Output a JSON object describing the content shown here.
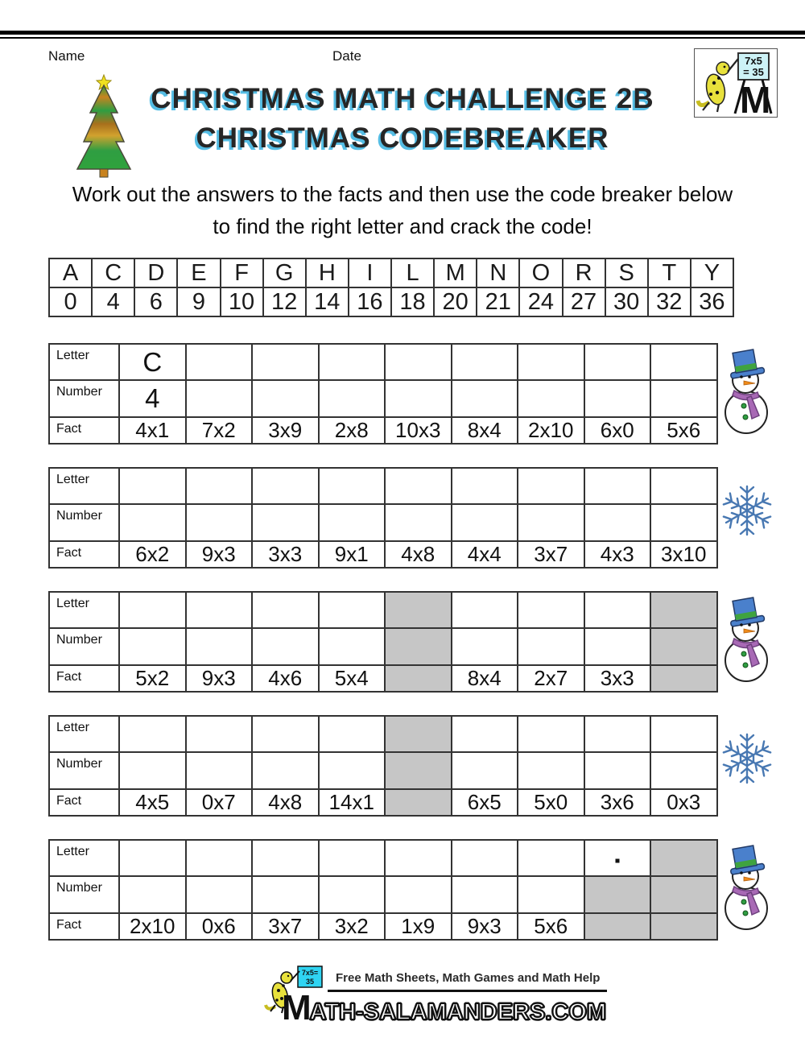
{
  "header": {
    "name_label": "Name",
    "date_label": "Date",
    "title_line1": "CHRISTMAS MATH CHALLENGE 2B",
    "title_line2": "CHRISTMAS CODEBREAKER",
    "logo_board_top": "7x5",
    "logo_board_bottom": "= 35",
    "logo_m": "M"
  },
  "instructions": {
    "line1": "Work out the answers to the facts and then use the code breaker below",
    "line2": "to find the right letter and crack the code!"
  },
  "codebreaker": {
    "letters": [
      "A",
      "C",
      "D",
      "E",
      "F",
      "G",
      "H",
      "I",
      "L",
      "M",
      "N",
      "O",
      "R",
      "S",
      "T",
      "Y"
    ],
    "numbers": [
      "0",
      "4",
      "6",
      "9",
      "10",
      "12",
      "14",
      "16",
      "18",
      "20",
      "21",
      "24",
      "27",
      "30",
      "32",
      "36"
    ]
  },
  "puzzle_row_labels": {
    "letter": "Letter",
    "number": "Number",
    "fact": "Fact"
  },
  "puzzles": [
    {
      "decoration": "snowman",
      "letters": [
        "C",
        "",
        "",
        "",
        "",
        "",
        "",
        "",
        ""
      ],
      "numbers": [
        "4",
        "",
        "",
        "",
        "",
        "",
        "",
        "",
        ""
      ],
      "facts": [
        "4x1",
        "7x2",
        "3x9",
        "2x8",
        "10x3",
        "8x4",
        "2x10",
        "6x0",
        "5x6"
      ],
      "shaded_letter": [],
      "shaded_number": [],
      "shaded_fact": []
    },
    {
      "decoration": "snowflake",
      "letters": [
        "",
        "",
        "",
        "",
        "",
        "",
        "",
        "",
        ""
      ],
      "numbers": [
        "",
        "",
        "",
        "",
        "",
        "",
        "",
        "",
        ""
      ],
      "facts": [
        "6x2",
        "9x3",
        "3x3",
        "9x1",
        "4x8",
        "4x4",
        "3x7",
        "4x3",
        "3x10"
      ],
      "shaded_letter": [],
      "shaded_number": [],
      "shaded_fact": []
    },
    {
      "decoration": "snowman",
      "letters": [
        "",
        "",
        "",
        "",
        "",
        "",
        "",
        "",
        ""
      ],
      "numbers": [
        "",
        "",
        "",
        "",
        "",
        "",
        "",
        "",
        ""
      ],
      "facts": [
        "5x2",
        "9x3",
        "4x6",
        "5x4",
        "",
        "8x4",
        "2x7",
        "3x3",
        ""
      ],
      "shaded_letter": [
        4,
        8
      ],
      "shaded_number": [
        4,
        8
      ],
      "shaded_fact": [
        4,
        8
      ]
    },
    {
      "decoration": "snowflake",
      "letters": [
        "",
        "",
        "",
        "",
        "",
        "",
        "",
        "",
        ""
      ],
      "numbers": [
        "",
        "",
        "",
        "",
        "",
        "",
        "",
        "",
        ""
      ],
      "facts": [
        "4x5",
        "0x7",
        "4x8",
        "14x1",
        "",
        "6x5",
        "5x0",
        "3x6",
        "0x3"
      ],
      "shaded_letter": [
        4
      ],
      "shaded_number": [
        4
      ],
      "shaded_fact": [
        4
      ]
    },
    {
      "decoration": "snowman",
      "letters": [
        "",
        "",
        "",
        "",
        "",
        "",
        "",
        ".",
        ""
      ],
      "numbers": [
        "",
        "",
        "",
        "",
        "",
        "",
        "",
        "",
        ""
      ],
      "facts": [
        "2x10",
        "0x6",
        "3x7",
        "3x2",
        "1x9",
        "9x3",
        "5x6",
        "",
        ""
      ],
      "shaded_letter": [
        8
      ],
      "shaded_number": [
        7,
        8
      ],
      "shaded_fact": [
        7,
        8
      ]
    }
  ],
  "footer": {
    "tagline": "Free Math Sheets, Math Games and Math Help",
    "brand_m": "M",
    "brand_rest": "ATH-SALAMANDERS.COM",
    "board_top": "7x5=",
    "board_bottom": "35"
  },
  "colors": {
    "title_text": "#262626",
    "title_shadow": "#55bde4",
    "shaded_cell": "#c6c6c6",
    "table_border": "#333333",
    "snowflake_blue": "#4878b2",
    "snowman_hat_blue": "#4a80cc",
    "snowman_scarf_purple": "#a869b5",
    "tree_green": "#2f9e42",
    "tree_orange": "#c8831f",
    "salamander_yellow": "#e8e13c",
    "board_cyan": "#2fd4f2"
  }
}
